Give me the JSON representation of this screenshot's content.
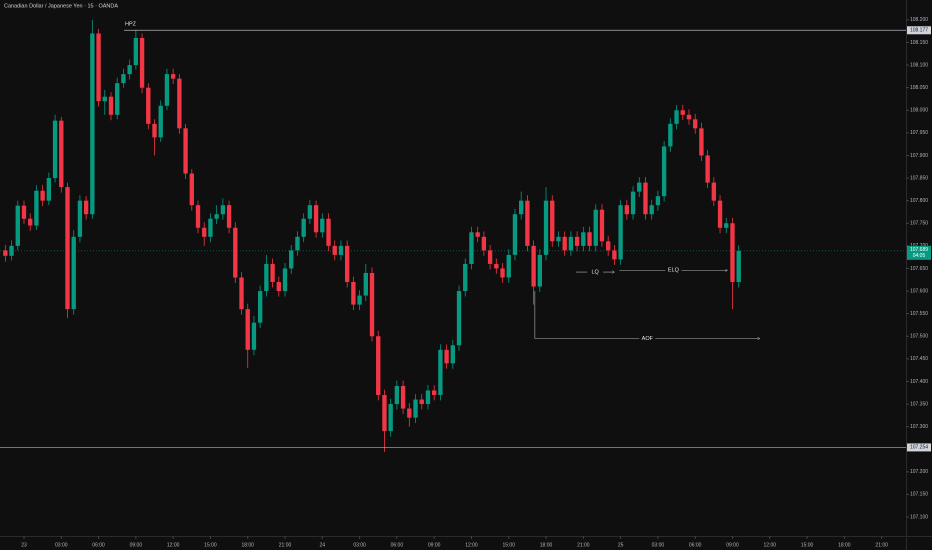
{
  "chart_data": {
    "type": "candlestick",
    "title": "Canadian Dollar / Japanese Yen · 15 · OANDA",
    "up_color": "#089981",
    "down_color": "#f23645",
    "xlim": [
      -1.93,
      70.96
    ],
    "ylim": [
      107.058,
      108.244
    ],
    "xticks": [
      {
        "value": 0,
        "label": "23"
      },
      {
        "value": 3,
        "label": "03:00"
      },
      {
        "value": 6,
        "label": "06:00"
      },
      {
        "value": 9,
        "label": "09:00"
      },
      {
        "value": 12,
        "label": "12:00"
      },
      {
        "value": 15,
        "label": "15:00"
      },
      {
        "value": 18,
        "label": "18:00"
      },
      {
        "value": 21,
        "label": "21:00"
      },
      {
        "value": 24,
        "label": "24"
      },
      {
        "value": 27,
        "label": "03:00"
      },
      {
        "value": 30,
        "label": "06:00"
      },
      {
        "value": 33,
        "label": "09:00"
      },
      {
        "value": 36,
        "label": "12:00"
      },
      {
        "value": 39,
        "label": "15:00"
      },
      {
        "value": 42,
        "label": "18:00"
      },
      {
        "value": 45,
        "label": "21:00"
      },
      {
        "value": 48,
        "label": "25"
      },
      {
        "value": 51,
        "label": "03:00"
      },
      {
        "value": 54,
        "label": "06:00"
      },
      {
        "value": 57,
        "label": "09:00"
      },
      {
        "value": 60,
        "label": "12:00"
      },
      {
        "value": 63,
        "label": "15:00"
      },
      {
        "value": 66,
        "label": "18:00"
      },
      {
        "value": 69,
        "label": "21:00"
      }
    ],
    "yticks": [
      {
        "value": 108.2,
        "label": "108.200"
      },
      {
        "value": 108.15,
        "label": "108.150"
      },
      {
        "value": 108.1,
        "label": "108.100"
      },
      {
        "value": 108.05,
        "label": "108.050"
      },
      {
        "value": 108.0,
        "label": "108.000"
      },
      {
        "value": 107.95,
        "label": "107.950"
      },
      {
        "value": 107.9,
        "label": "107.900"
      },
      {
        "value": 107.85,
        "label": "107.850"
      },
      {
        "value": 107.8,
        "label": "107.800"
      },
      {
        "value": 107.75,
        "label": "107.750"
      },
      {
        "value": 107.7,
        "label": "107.700"
      },
      {
        "value": 107.65,
        "label": "107.650"
      },
      {
        "value": 107.6,
        "label": "107.600"
      },
      {
        "value": 107.55,
        "label": "107.550"
      },
      {
        "value": 107.5,
        "label": "107.500"
      },
      {
        "value": 107.45,
        "label": "107.450"
      },
      {
        "value": 107.4,
        "label": "107.400"
      },
      {
        "value": 107.35,
        "label": "107.350"
      },
      {
        "value": 107.3,
        "label": "107.300"
      },
      {
        "value": 107.25,
        "label": "107.250"
      },
      {
        "value": 107.2,
        "label": "107.200"
      },
      {
        "value": 107.15,
        "label": "107.150"
      },
      {
        "value": 107.1,
        "label": "107.100"
      }
    ],
    "x": [
      -1.5,
      -1,
      -0.5,
      0,
      0.5,
      1,
      1.5,
      2,
      2.5,
      3,
      3.5,
      4,
      4.5,
      5,
      5.5,
      6,
      6.5,
      7,
      7.5,
      8,
      8.5,
      9,
      9.5,
      10,
      10.5,
      11,
      11.5,
      12,
      12.5,
      13,
      13.5,
      14,
      14.5,
      15,
      15.5,
      16,
      16.5,
      17,
      17.5,
      18,
      18.5,
      19,
      19.5,
      20,
      20.5,
      21,
      21.5,
      22,
      22.5,
      23,
      23.5,
      24,
      24.5,
      25,
      25.5,
      26,
      26.5,
      27,
      27.5,
      28,
      28.5,
      29,
      29.5,
      30,
      30.5,
      31,
      31.5,
      32,
      32.5,
      33,
      33.5,
      34,
      34.5,
      35,
      35.5,
      36,
      36.5,
      37,
      37.5,
      38,
      38.5,
      39,
      39.5,
      40,
      40.5,
      41,
      41.5,
      42,
      42.5,
      43,
      43.5,
      44,
      44.5,
      45,
      45.5,
      46,
      46.5,
      47,
      47.5,
      48,
      48.5,
      49,
      49.5,
      50,
      50.5,
      51,
      51.5,
      52,
      52.5,
      53,
      53.5,
      54,
      54.5,
      55,
      55.5,
      56,
      56.5,
      57,
      57.5
    ],
    "ohlc": [
      [
        107.69,
        107.702,
        107.665,
        107.678
      ],
      [
        107.678,
        107.712,
        107.668,
        107.7
      ],
      [
        107.7,
        107.8,
        107.69,
        107.789
      ],
      [
        107.789,
        107.8,
        107.748,
        107.76
      ],
      [
        107.76,
        107.772,
        107.733,
        107.745
      ],
      [
        107.745,
        107.834,
        107.735,
        107.822
      ],
      [
        107.822,
        107.835,
        107.788,
        107.8
      ],
      [
        107.8,
        107.862,
        107.79,
        107.85
      ],
      [
        107.85,
        107.99,
        107.84,
        107.977
      ],
      [
        107.977,
        107.985,
        107.818,
        107.83
      ],
      [
        107.83,
        107.84,
        107.54,
        107.56
      ],
      [
        107.56,
        107.735,
        107.548,
        107.72
      ],
      [
        107.72,
        107.812,
        107.708,
        107.8
      ],
      [
        107.8,
        107.81,
        107.758,
        107.77
      ],
      [
        107.77,
        108.2,
        107.76,
        108.17
      ],
      [
        108.17,
        108.18,
        108.008,
        108.02
      ],
      [
        108.02,
        108.045,
        107.99,
        108.03
      ],
      [
        108.03,
        108.04,
        107.978,
        107.99
      ],
      [
        107.99,
        108.072,
        107.98,
        108.06
      ],
      [
        108.06,
        108.092,
        108.05,
        108.08
      ],
      [
        108.08,
        108.112,
        108.068,
        108.1
      ],
      [
        108.1,
        108.178,
        108.09,
        108.16
      ],
      [
        108.16,
        108.17,
        108.038,
        108.05
      ],
      [
        108.05,
        108.06,
        107.958,
        107.97
      ],
      [
        107.97,
        107.98,
        107.9,
        107.94
      ],
      [
        107.94,
        108.022,
        107.93,
        108.01
      ],
      [
        108.01,
        108.092,
        108.0,
        108.08
      ],
      [
        108.08,
        108.092,
        108.058,
        108.07
      ],
      [
        108.07,
        108.08,
        107.948,
        107.96
      ],
      [
        107.96,
        107.97,
        107.848,
        107.86
      ],
      [
        107.86,
        107.87,
        107.778,
        107.79
      ],
      [
        107.79,
        107.8,
        107.728,
        107.74
      ],
      [
        107.74,
        107.752,
        107.7,
        107.72
      ],
      [
        107.72,
        107.772,
        107.708,
        107.76
      ],
      [
        107.76,
        107.79,
        107.748,
        107.77
      ],
      [
        107.77,
        107.805,
        107.758,
        107.79
      ],
      [
        107.79,
        107.8,
        107.728,
        107.74
      ],
      [
        107.74,
        107.752,
        107.618,
        107.63
      ],
      [
        107.63,
        107.642,
        107.548,
        107.56
      ],
      [
        107.56,
        107.572,
        107.43,
        107.47
      ],
      [
        107.47,
        107.545,
        107.458,
        107.53
      ],
      [
        107.53,
        107.612,
        107.518,
        107.6
      ],
      [
        107.6,
        107.68,
        107.588,
        107.66
      ],
      [
        107.66,
        107.672,
        107.608,
        107.62
      ],
      [
        107.62,
        107.632,
        107.588,
        107.6
      ],
      [
        107.6,
        107.662,
        107.588,
        107.65
      ],
      [
        107.65,
        107.702,
        107.638,
        107.69
      ],
      [
        107.69,
        107.732,
        107.678,
        107.72
      ],
      [
        107.72,
        107.772,
        107.708,
        107.76
      ],
      [
        107.76,
        107.802,
        107.748,
        107.79
      ],
      [
        107.79,
        107.8,
        107.718,
        107.73
      ],
      [
        107.73,
        107.772,
        107.718,
        107.76
      ],
      [
        107.76,
        107.772,
        107.688,
        107.7
      ],
      [
        107.7,
        107.712,
        107.668,
        107.68
      ],
      [
        107.68,
        107.712,
        107.668,
        107.7
      ],
      [
        107.7,
        107.712,
        107.608,
        107.62
      ],
      [
        107.62,
        107.632,
        107.558,
        107.57
      ],
      [
        107.57,
        107.602,
        107.558,
        107.59
      ],
      [
        107.59,
        107.66,
        107.578,
        107.64
      ],
      [
        107.64,
        107.652,
        107.488,
        107.5
      ],
      [
        107.5,
        107.512,
        107.358,
        107.37
      ],
      [
        107.37,
        107.382,
        107.244,
        107.29
      ],
      [
        107.29,
        107.362,
        107.278,
        107.35
      ],
      [
        107.35,
        107.402,
        107.338,
        107.39
      ],
      [
        107.39,
        107.402,
        107.328,
        107.34
      ],
      [
        107.34,
        107.352,
        107.3,
        107.32
      ],
      [
        107.32,
        107.372,
        107.308,
        107.36
      ],
      [
        107.36,
        107.372,
        107.338,
        107.35
      ],
      [
        107.35,
        107.392,
        107.338,
        107.38
      ],
      [
        107.38,
        107.392,
        107.358,
        107.37
      ],
      [
        107.37,
        107.482,
        107.358,
        107.47
      ],
      [
        107.47,
        107.482,
        107.428,
        107.44
      ],
      [
        107.44,
        107.492,
        107.428,
        107.48
      ],
      [
        107.48,
        107.612,
        107.468,
        107.6
      ],
      [
        107.6,
        107.672,
        107.588,
        107.66
      ],
      [
        107.66,
        107.742,
        107.648,
        107.73
      ],
      [
        107.73,
        107.742,
        107.708,
        107.72
      ],
      [
        107.72,
        107.732,
        107.678,
        107.69
      ],
      [
        107.69,
        107.702,
        107.648,
        107.66
      ],
      [
        107.66,
        107.672,
        107.638,
        107.65
      ],
      [
        107.65,
        107.662,
        107.618,
        107.63
      ],
      [
        107.63,
        107.692,
        107.618,
        107.68
      ],
      [
        107.68,
        107.782,
        107.668,
        107.77
      ],
      [
        107.77,
        107.82,
        107.758,
        107.8
      ],
      [
        107.8,
        107.812,
        107.688,
        107.7
      ],
      [
        107.7,
        107.712,
        107.57,
        107.61
      ],
      [
        107.61,
        107.692,
        107.598,
        107.68
      ],
      [
        107.68,
        107.83,
        107.668,
        107.8
      ],
      [
        107.8,
        107.812,
        107.698,
        107.71
      ],
      [
        107.71,
        107.732,
        107.698,
        107.72
      ],
      [
        107.72,
        107.732,
        107.678,
        107.69
      ],
      [
        107.69,
        107.732,
        107.678,
        107.72
      ],
      [
        107.72,
        107.732,
        107.688,
        107.7
      ],
      [
        107.7,
        107.742,
        107.688,
        107.73
      ],
      [
        107.73,
        107.742,
        107.688,
        107.7
      ],
      [
        107.7,
        107.792,
        107.688,
        107.78
      ],
      [
        107.78,
        107.792,
        107.698,
        107.71
      ],
      [
        107.71,
        107.722,
        107.678,
        107.69
      ],
      [
        107.69,
        107.702,
        107.658,
        107.67
      ],
      [
        107.67,
        107.802,
        107.658,
        107.79
      ],
      [
        107.79,
        107.802,
        107.758,
        107.77
      ],
      [
        107.77,
        107.832,
        107.758,
        107.82
      ],
      [
        107.82,
        107.852,
        107.808,
        107.84
      ],
      [
        107.84,
        107.852,
        107.758,
        107.77
      ],
      [
        107.77,
        107.802,
        107.758,
        107.79
      ],
      [
        107.79,
        107.822,
        107.778,
        107.81
      ],
      [
        107.81,
        107.932,
        107.798,
        107.92
      ],
      [
        107.92,
        107.982,
        107.908,
        107.97
      ],
      [
        107.97,
        108.012,
        107.958,
        108.0
      ],
      [
        108.0,
        108.012,
        107.978,
        107.99
      ],
      [
        107.99,
        108.002,
        107.968,
        107.98
      ],
      [
        107.98,
        107.992,
        107.948,
        107.96
      ],
      [
        107.96,
        107.972,
        107.888,
        107.9
      ],
      [
        107.9,
        107.912,
        107.828,
        107.84
      ],
      [
        107.84,
        107.852,
        107.788,
        107.8
      ],
      [
        107.8,
        107.812,
        107.728,
        107.74
      ],
      [
        107.74,
        107.762,
        107.728,
        107.75
      ],
      [
        107.75,
        107.762,
        107.56,
        107.62
      ],
      [
        107.62,
        107.701,
        107.608,
        107.689
      ]
    ],
    "levels": [
      {
        "price": 108.177,
        "label": "HPZ",
        "x0": 8.05
      },
      {
        "price": 107.254
      }
    ],
    "arrows": [
      {
        "label": "LQ",
        "price": 107.642,
        "x0": 44.4,
        "x1": 47.5
      },
      {
        "label": "ELQ",
        "price": 107.646,
        "x0": 47.9,
        "x1": 56.6
      },
      {
        "label": "AOF",
        "price": 107.495,
        "x0": 41.1,
        "x1": 59.2,
        "from": 107.6
      }
    ],
    "last_price": 107.689,
    "countdown": "04:05"
  }
}
